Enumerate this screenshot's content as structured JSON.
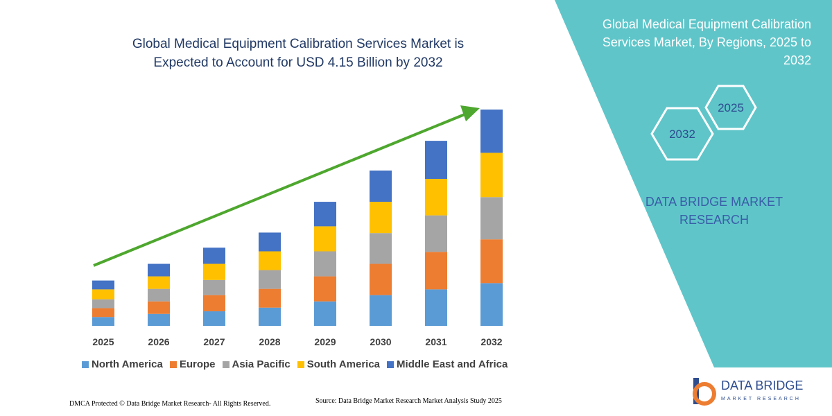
{
  "chart_data": {
    "type": "stacked_bar",
    "title": "Global Medical Equipment Calibration Services Market is Expected to Account for USD 4.15 Billion by 2032",
    "categories": [
      "2025",
      "2026",
      "2027",
      "2028",
      "2029",
      "2030",
      "2031",
      "2032"
    ],
    "series": [
      {
        "name": "North America",
        "color": "#5b9bd5",
        "values": [
          0.17,
          0.23,
          0.28,
          0.35,
          0.47,
          0.59,
          0.7,
          0.82
        ]
      },
      {
        "name": "Europe",
        "color": "#ed7d31",
        "values": [
          0.17,
          0.24,
          0.31,
          0.36,
          0.48,
          0.6,
          0.72,
          0.84
        ]
      },
      {
        "name": "Asia Pacific",
        "color": "#a5a5a5",
        "values": [
          0.17,
          0.24,
          0.29,
          0.36,
          0.48,
          0.59,
          0.7,
          0.81
        ]
      },
      {
        "name": "South America",
        "color": "#ffc000",
        "values": [
          0.19,
          0.24,
          0.31,
          0.36,
          0.48,
          0.6,
          0.7,
          0.85
        ]
      },
      {
        "name": "Middle East and Africa",
        "color": "#4472c4",
        "values": [
          0.17,
          0.24,
          0.31,
          0.36,
          0.47,
          0.6,
          0.73,
          0.83
        ]
      }
    ]
  },
  "side_panel": {
    "title": "Global Medical Equipment Calibration Services Market, By Regions, 2025 to 2032",
    "hexagons": [
      "2025",
      "2032"
    ],
    "brand": "DATA BRIDGE MARKET RESEARCH"
  },
  "logo": {
    "name": "DATA BRIDGE",
    "tagline": "MARKET RESEARCH"
  },
  "footer": {
    "rights": "DMCA Protected © Data Bridge Market Research-  All Rights Reserved.",
    "source": "Source: Data Bridge Market Research  Market Analysis Study 2025"
  }
}
